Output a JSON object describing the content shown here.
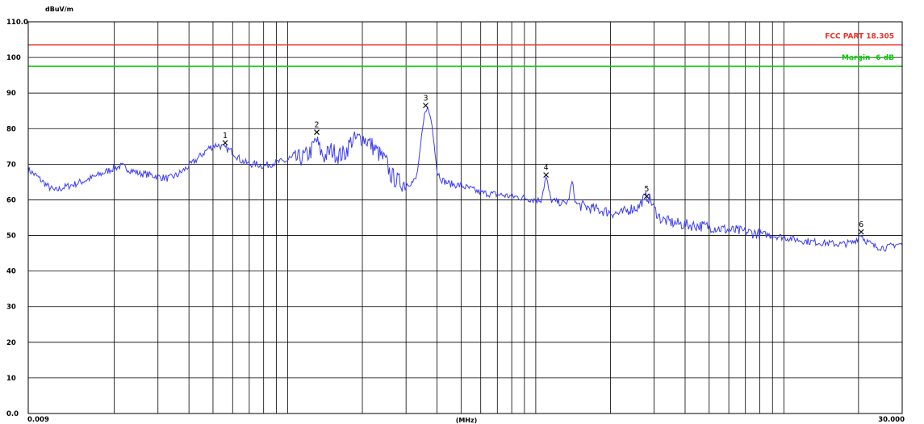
{
  "chart_data": {
    "type": "line",
    "title": "",
    "ylabel": "dBuV/m",
    "xlabel": "(MHz)",
    "x_scale": "log",
    "xlim": [
      0.009,
      30.0
    ],
    "ylim": [
      0,
      110
    ],
    "grid": true,
    "y_ticks": [
      {
        "value": 0,
        "label": "0.0"
      },
      {
        "value": 10,
        "label": "10"
      },
      {
        "value": 20,
        "label": "20"
      },
      {
        "value": 30,
        "label": "30"
      },
      {
        "value": 40,
        "label": "40"
      },
      {
        "value": 50,
        "label": "50"
      },
      {
        "value": 60,
        "label": "60"
      },
      {
        "value": 70,
        "label": "70"
      },
      {
        "value": 80,
        "label": "80"
      },
      {
        "value": 90,
        "label": "90"
      },
      {
        "value": 100,
        "label": "100"
      },
      {
        "value": 110,
        "label": "110.0"
      }
    ],
    "x_ticks": [
      {
        "value": 0.009,
        "label": "0.009"
      },
      {
        "value": 30.0,
        "label": "30.000"
      }
    ],
    "x_gridlines": [
      0.02,
      0.03,
      0.04,
      0.05,
      0.06,
      0.07,
      0.08,
      0.09,
      0.1,
      0.2,
      0.3,
      0.4,
      0.5,
      0.6,
      0.7,
      0.8,
      0.9,
      1,
      2,
      3,
      4,
      5,
      6,
      7,
      8,
      9,
      10,
      20
    ],
    "limit_lines": [
      {
        "label": "FCC PART 18.305",
        "value": 103.5,
        "color": "#e8312a"
      },
      {
        "label": "Margin -6 dB",
        "value": 97.5,
        "color": "#00cc00"
      }
    ],
    "series": [
      {
        "color": "#3c3cf0",
        "points": [
          [
            0.009,
            68.5
          ],
          [
            0.0098,
            66.5
          ],
          [
            0.0107,
            64
          ],
          [
            0.0115,
            62.5
          ],
          [
            0.0125,
            63.5
          ],
          [
            0.014,
            64.5
          ],
          [
            0.016,
            66
          ],
          [
            0.018,
            67.5
          ],
          [
            0.02,
            69
          ],
          [
            0.0215,
            69.5
          ],
          [
            0.023,
            68.5
          ],
          [
            0.025,
            67.5
          ],
          [
            0.028,
            67
          ],
          [
            0.03,
            66.5
          ],
          [
            0.033,
            66
          ],
          [
            0.036,
            67
          ],
          [
            0.04,
            69.5
          ],
          [
            0.044,
            72
          ],
          [
            0.048,
            74.5
          ],
          [
            0.052,
            75.5
          ],
          [
            0.056,
            74.5
          ],
          [
            0.06,
            73.5
          ],
          [
            0.065,
            71
          ],
          [
            0.07,
            70
          ],
          [
            0.075,
            70
          ],
          [
            0.08,
            69.5
          ],
          [
            0.09,
            70.5
          ],
          [
            0.1,
            71
          ],
          [
            0.11,
            71.5
          ],
          [
            0.12,
            72.5
          ],
          [
            0.125,
            74
          ],
          [
            0.13,
            77
          ],
          [
            0.135,
            74
          ],
          [
            0.14,
            72
          ],
          [
            0.15,
            74
          ],
          [
            0.16,
            72.5
          ],
          [
            0.17,
            73
          ],
          [
            0.18,
            76.5
          ],
          [
            0.19,
            77
          ],
          [
            0.2,
            77.5
          ],
          [
            0.21,
            76.5
          ],
          [
            0.22,
            75
          ],
          [
            0.24,
            72
          ],
          [
            0.25,
            70.5
          ],
          [
            0.26,
            67
          ],
          [
            0.28,
            65
          ],
          [
            0.3,
            64.5
          ],
          [
            0.32,
            65
          ],
          [
            0.33,
            66
          ],
          [
            0.34,
            72
          ],
          [
            0.35,
            80
          ],
          [
            0.36,
            86
          ],
          [
            0.37,
            85
          ],
          [
            0.38,
            82
          ],
          [
            0.39,
            76
          ],
          [
            0.4,
            68
          ],
          [
            0.42,
            65.5
          ],
          [
            0.45,
            64.5
          ],
          [
            0.5,
            64
          ],
          [
            0.55,
            63
          ],
          [
            0.6,
            62
          ],
          [
            0.7,
            61.5
          ],
          [
            0.8,
            61
          ],
          [
            0.9,
            60.5
          ],
          [
            1.0,
            60
          ],
          [
            1.05,
            60
          ],
          [
            1.1,
            66.5
          ],
          [
            1.15,
            60
          ],
          [
            1.2,
            59.5
          ],
          [
            1.3,
            59
          ],
          [
            1.35,
            59.5
          ],
          [
            1.4,
            65
          ],
          [
            1.45,
            59
          ],
          [
            1.5,
            58.5
          ],
          [
            1.7,
            57.5
          ],
          [
            2.0,
            56.5
          ],
          [
            2.2,
            56
          ],
          [
            2.4,
            57.5
          ],
          [
            2.6,
            58
          ],
          [
            2.7,
            60
          ],
          [
            2.8,
            61
          ],
          [
            2.9,
            60
          ],
          [
            3.0,
            57.5
          ],
          [
            3.2,
            54.5
          ],
          [
            3.6,
            53.5
          ],
          [
            4.0,
            53
          ],
          [
            5.0,
            52.5
          ],
          [
            6.0,
            51.5
          ],
          [
            7.0,
            51
          ],
          [
            8.0,
            50.5
          ],
          [
            10.0,
            49.5
          ],
          [
            12.0,
            48.5
          ],
          [
            14.0,
            48
          ],
          [
            17.0,
            47.5
          ],
          [
            19.0,
            48
          ],
          [
            20.0,
            49.5
          ],
          [
            20.5,
            50.5
          ],
          [
            21.0,
            49
          ],
          [
            23.0,
            47
          ],
          [
            26.0,
            46.5
          ],
          [
            28.0,
            47.5
          ],
          [
            30.0,
            47.5
          ]
        ]
      }
    ],
    "markers": [
      {
        "label": "1",
        "x": 0.056,
        "y": 76.0
      },
      {
        "label": "2",
        "x": 0.131,
        "y": 79.0
      },
      {
        "label": "3",
        "x": 0.36,
        "y": 86.5
      },
      {
        "label": "4",
        "x": 1.1,
        "y": 67.0
      },
      {
        "label": "5",
        "x": 2.8,
        "y": 61.0
      },
      {
        "label": "6",
        "x": 20.5,
        "y": 51.0
      }
    ]
  }
}
